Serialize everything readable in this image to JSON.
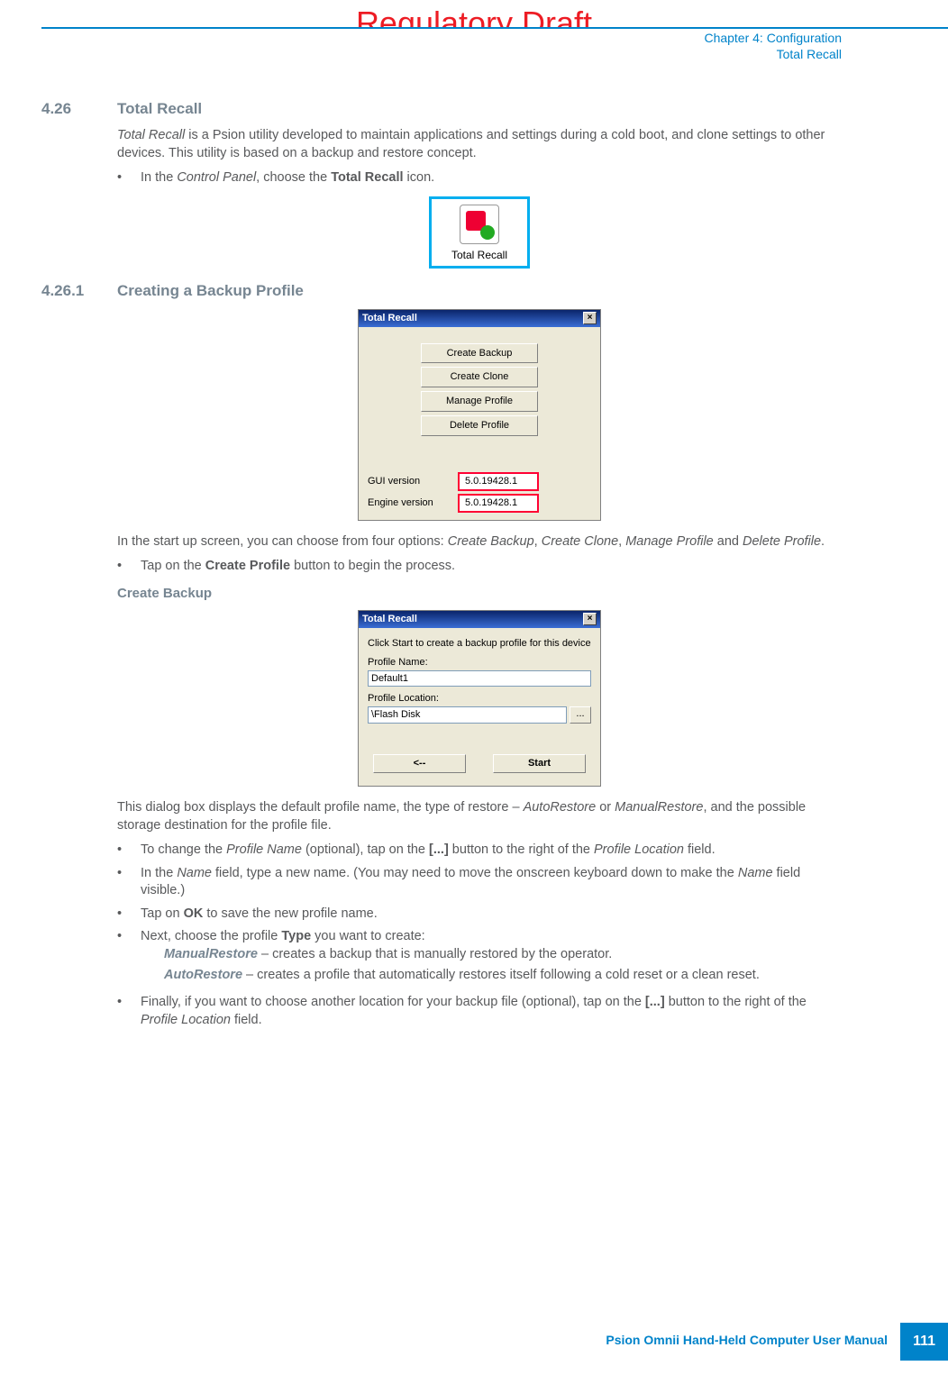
{
  "watermark": "Regulatory Draft",
  "header": {
    "chapter": "Chapter 4:  Configuration",
    "section": "Total Recall"
  },
  "sec426": {
    "num": "4.26",
    "title": "Total Recall",
    "intro_pre": "Total Recall",
    "intro_rest": " is a Psion utility developed to maintain applications and settings during a cold boot, and clone settings to other devices. This utility is based on a backup and restore concept.",
    "bullet1_pre": "In the ",
    "bullet1_it": "Control Panel",
    "bullet1_mid": ", choose the ",
    "bullet1_bold": "Total Recall",
    "bullet1_end": " icon."
  },
  "icon": {
    "caption": "Total Recall"
  },
  "sec4261": {
    "num": "4.26.1",
    "title": "Creating a Backup Profile"
  },
  "dialog1": {
    "title": "Total Recall",
    "buttons": [
      "Create Backup",
      "Create Clone",
      "Manage Profile",
      "Delete Profile"
    ],
    "gui_label": "GUI version",
    "engine_label": "Engine version",
    "gui_ver": "5.0.19428.1",
    "engine_ver": "5.0.19428.1"
  },
  "after_dlg1": {
    "p_pre": "In the start up screen, you can choose from four options: ",
    "opt1": "Create Backup",
    "sep1": ", ",
    "opt2": "Create Clone",
    "sep2": ", ",
    "opt3": "Manage Profile",
    "sep3": " and ",
    "opt4": "Delete Profile",
    "p_end": ".",
    "bullet_pre": "Tap on the ",
    "bullet_bold": "Create Profile",
    "bullet_end": " button to begin the process."
  },
  "create_backup_head": "Create Backup",
  "dialog2": {
    "title": "Total Recall",
    "instr": "Click Start to create a backup profile for this device",
    "name_label": "Profile Name:",
    "name_value": "Default1",
    "loc_label": "Profile Location:",
    "loc_value": "\\Flash Disk",
    "loc_btn": "...",
    "back_btn": "<--",
    "start_btn": "Start"
  },
  "after_dlg2": {
    "p1_a": "This dialog box displays the default profile name, the type of restore – ",
    "p1_i1": "AutoRestore",
    "p1_b": " or ",
    "p1_i2": "ManualRestore",
    "p1_c": ", and the possible storage destination for the profile file.",
    "b1_a": "To change the ",
    "b1_i1": "Profile Name",
    "b1_b": " (optional), tap on the ",
    "b1_bold": "[...]",
    "b1_c": " button to the right of the ",
    "b1_i2": "Profile Location",
    "b1_d": " field.",
    "b2_a": "In the ",
    "b2_i1": "Name",
    "b2_b": " field, type a new name. (You may need to move the onscreen keyboard down to make the ",
    "b2_i2": "Name",
    "b2_c": " field visible.)",
    "b3_a": "Tap on ",
    "b3_bold": "OK",
    "b3_b": " to save the new profile name.",
    "b4_a": "Next, choose the profile ",
    "b4_bold": "Type",
    "b4_b": " you want to create:",
    "b4_s1_bi": "ManualRestore",
    "b4_s1_rest": " – creates a backup that is manually restored by the operator.",
    "b4_s2_bi": "AutoRestore",
    "b4_s2_rest": " – creates a profile that automatically restores itself following a cold reset or a clean reset.",
    "b5_a": "Finally, if you want to choose another location for your backup file (optional), tap on the ",
    "b5_bold": "[...]",
    "b5_b": " button to the right of the ",
    "b5_i": "Profile Location",
    "b5_c": " field."
  },
  "footer": {
    "label": "Psion Omnii Hand-Held Computer User Manual",
    "page": "111"
  }
}
